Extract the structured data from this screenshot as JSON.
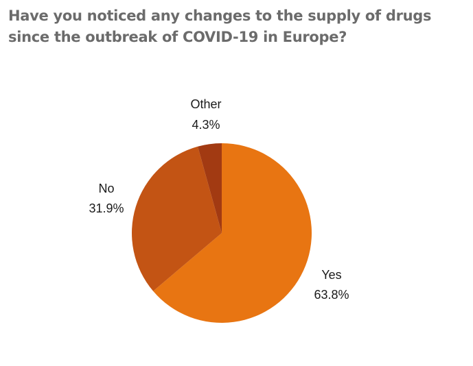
{
  "chart_data": {
    "type": "pie",
    "title": "Have you noticed any changes to the supply of drugs since the outbreak of COVID-19 in Europe?",
    "categories": [
      "Yes",
      "No",
      "Other"
    ],
    "values": [
      63.8,
      31.9,
      4.3
    ],
    "value_labels": [
      "63.8%",
      "31.9%",
      "4.3%"
    ],
    "colors": [
      "#E87512",
      "#C35414",
      "#A23A12"
    ],
    "start_angle": "12 o'clock, clockwise"
  }
}
